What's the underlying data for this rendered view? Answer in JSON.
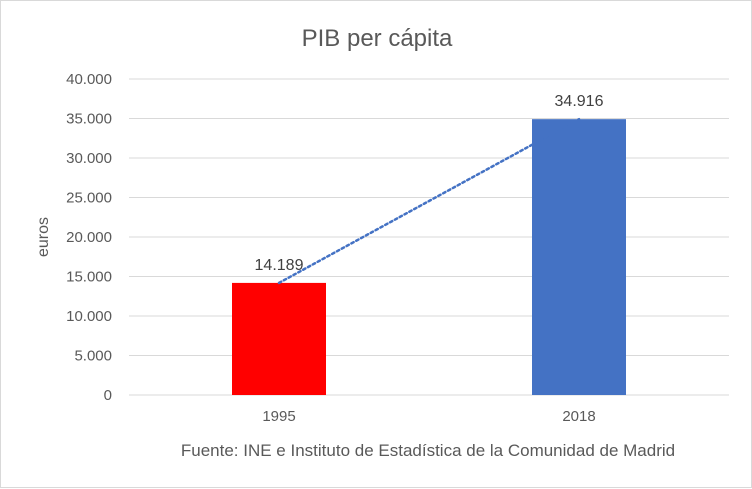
{
  "chart_data": {
    "type": "bar",
    "title": "PIB per cápita",
    "ylabel": "euros",
    "xlabel": "",
    "categories": [
      "1995",
      "2018"
    ],
    "values": [
      14189,
      34916
    ],
    "data_labels": [
      "14.189",
      "34.916"
    ],
    "bar_colors": [
      "#ff0000",
      "#4472c4"
    ],
    "ylim": [
      0,
      40000
    ],
    "yticks": [
      0,
      5000,
      10000,
      15000,
      20000,
      25000,
      30000,
      35000,
      40000
    ],
    "ytick_labels": [
      "0",
      "5.000",
      "10.000",
      "15.000",
      "20.000",
      "25.000",
      "30.000",
      "35.000",
      "40.000"
    ],
    "gridlines": true,
    "legend": "none",
    "trendline": {
      "style": "dotted",
      "color": "#4472c4"
    },
    "source_note": "Fuente: INE e Instituto de Estadística de la Comunidad de Madrid"
  }
}
